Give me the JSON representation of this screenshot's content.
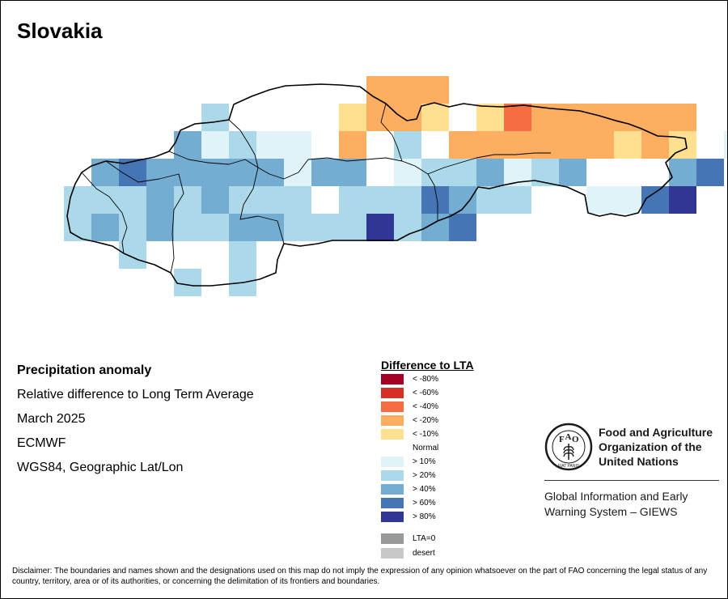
{
  "title": "Slovakia",
  "info": {
    "heading": "Precipitation anomaly",
    "subtitle": "Relative difference to Long Term Average",
    "period": "March 2025",
    "source": "ECMWF",
    "projection": "WGS84, Geographic Lat/Lon"
  },
  "legend": {
    "title": "Difference to LTA",
    "items": [
      {
        "label": "< -80%",
        "color": "#a50026"
      },
      {
        "label": "< -60%",
        "color": "#d73027"
      },
      {
        "label": "< -40%",
        "color": "#f46d43"
      },
      {
        "label": "< -20%",
        "color": "#fdae61"
      },
      {
        "label": "< -10%",
        "color": "#fee090"
      },
      {
        "label": "Normal",
        "color": "#ffffff"
      },
      {
        "label": "> 10%",
        "color": "#e0f3f8"
      },
      {
        "label": "> 20%",
        "color": "#abd9e9"
      },
      {
        "label": "> 40%",
        "color": "#74add1"
      },
      {
        "label": "> 60%",
        "color": "#4575b4"
      },
      {
        "label": "> 80%",
        "color": "#313695"
      }
    ],
    "extra": [
      {
        "label": "LTA=0",
        "color": "#999999"
      },
      {
        "label": "desert",
        "color": "#c8c8c8"
      }
    ]
  },
  "fao": {
    "name_lines": [
      "Food and Agriculture",
      "Organization of the",
      "United Nations"
    ],
    "emblem_text": "FIAT PANIS",
    "program_lines": [
      "Global Information and Early",
      "Warning System – GIEWS"
    ]
  },
  "disclaimer": "Disclaimer: The boundaries and names shown and the designations used on this map do not imply the expression of any opinion whatsoever on the part of FAO concerning the legal status of any country, territory, area or of its authorities, or concerning the delimitation of its frontiers and boundaries."
}
